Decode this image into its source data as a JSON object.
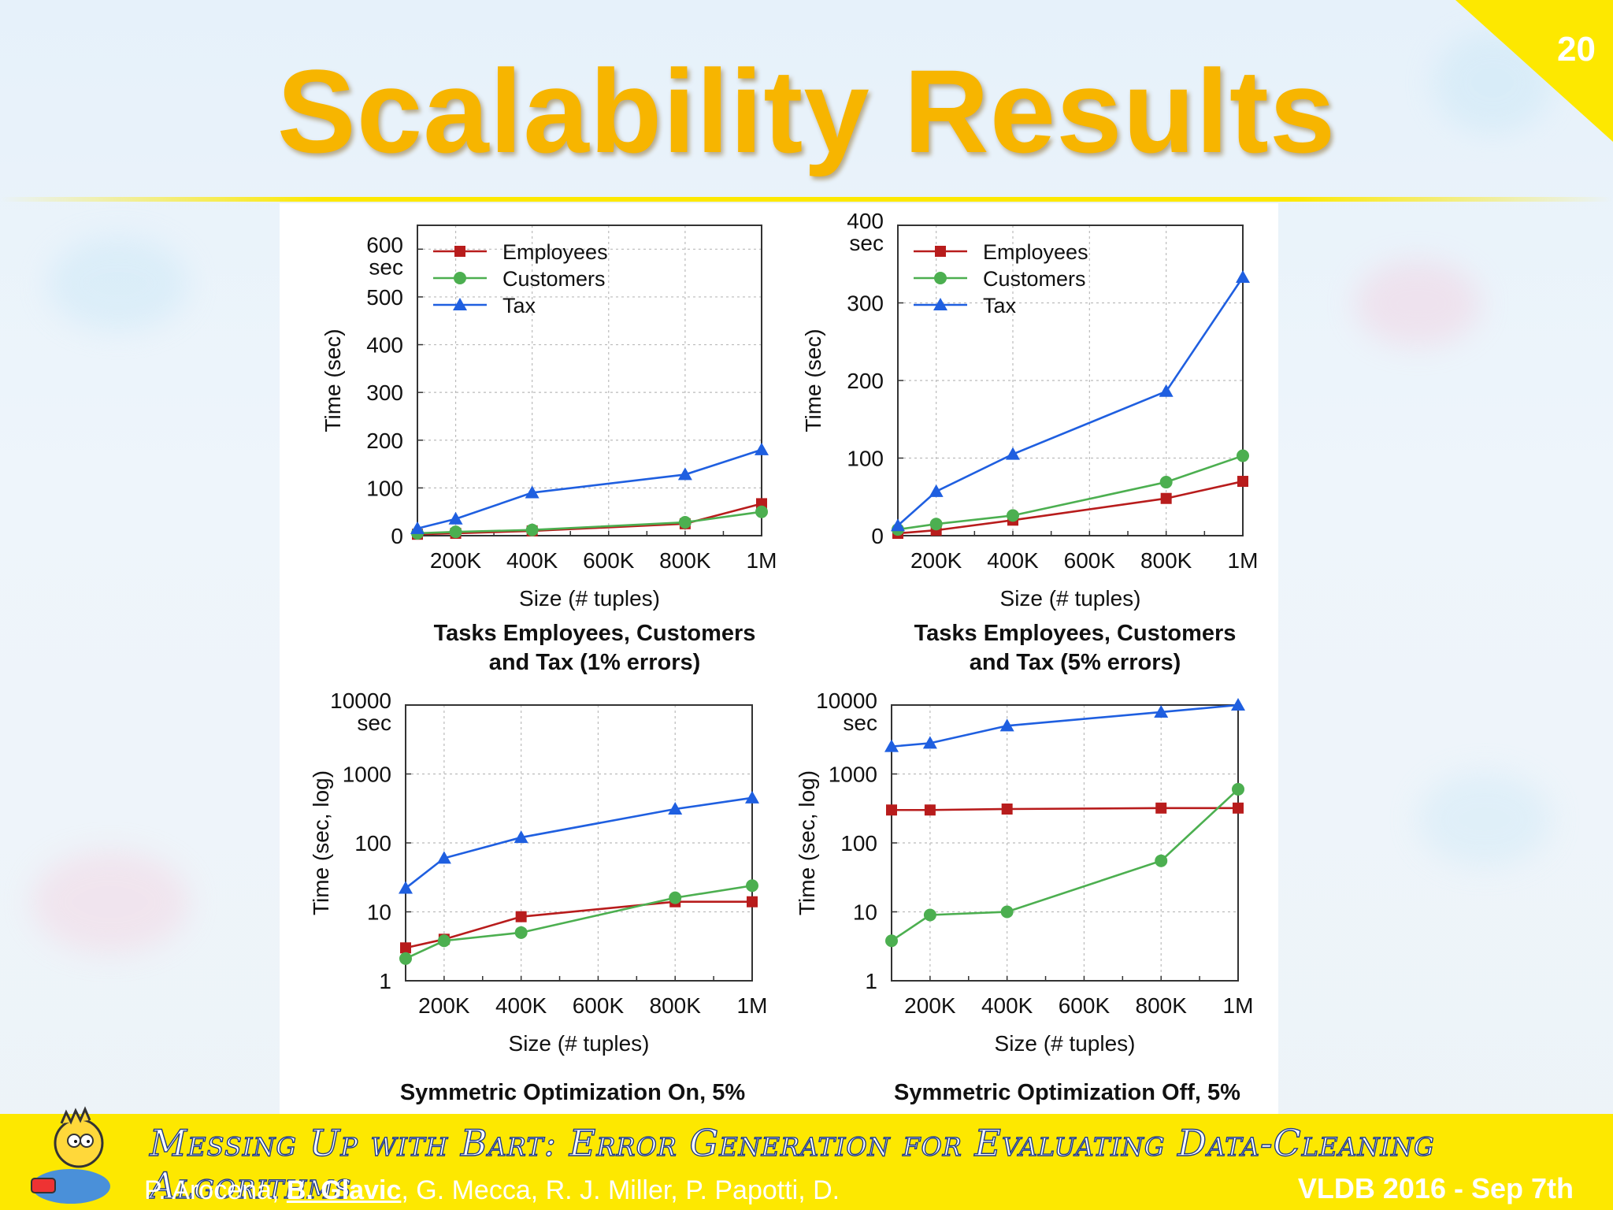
{
  "slide": {
    "title": "Scalability Results",
    "number": "20",
    "accent": "#f7b500",
    "banner_color": "#fde800"
  },
  "footer": {
    "title": "Messing Up with Bart: Error Generation for Evaluating Data-Cleaning Algorithms",
    "authors_pre": "P. Arocena, ",
    "authors_highlight": "B. Glavic",
    "authors_post": ", G. Mecca, R. J. Miller, P. Papotti, D.",
    "venue": "VLDB 2016 - Sep 7th"
  },
  "mascot": {
    "icon": "cartoon-mascot-icon"
  },
  "chart_data": [
    {
      "type": "line",
      "x_tick_labels": [
        "200K",
        "400K",
        "600K",
        "800K",
        "1M"
      ],
      "x_ticks": [
        200,
        400,
        600,
        800,
        1000
      ],
      "xlim": [
        100,
        1000
      ],
      "xlabel": "Size (# tuples)",
      "ylabel": "Time (sec)",
      "y_unit_label": "sec",
      "ylim": [
        0,
        650
      ],
      "y_ticks": [
        0,
        100,
        200,
        300,
        400,
        500,
        600
      ],
      "y_tick_labels": [
        "0",
        "100",
        "200",
        "300",
        "400",
        "500",
        "600"
      ],
      "yscale": "linear",
      "grid": true,
      "legend": "top-left",
      "caption_lines": [
        "Tasks Employees, Customers",
        "and Tax (1% errors)"
      ],
      "series": [
        {
          "name": "Employees",
          "color": "#b81c1c",
          "marker": "square",
          "x": [
            100,
            200,
            400,
            800,
            1000
          ],
          "values": [
            3,
            5,
            10,
            25,
            67
          ]
        },
        {
          "name": "Customers",
          "color": "#4caf50",
          "marker": "circle",
          "x": [
            100,
            200,
            400,
            800,
            1000
          ],
          "values": [
            5,
            8,
            12,
            28,
            50
          ]
        },
        {
          "name": "Tax",
          "color": "#1f5fe0",
          "marker": "triangle",
          "x": [
            100,
            200,
            400,
            800,
            1000
          ],
          "values": [
            15,
            35,
            90,
            128,
            180
          ]
        }
      ]
    },
    {
      "type": "line",
      "x_tick_labels": [
        "200K",
        "400K",
        "600K",
        "800K",
        "1M"
      ],
      "x_ticks": [
        200,
        400,
        600,
        800,
        1000
      ],
      "xlim": [
        100,
        1000
      ],
      "xlabel": "Size (# tuples)",
      "ylabel": "Time (sec)",
      "y_unit_label": "sec",
      "ylim": [
        0,
        400
      ],
      "y_ticks": [
        0,
        100,
        200,
        300,
        400
      ],
      "y_tick_labels": [
        "0",
        "100",
        "200",
        "300",
        "400"
      ],
      "yscale": "linear",
      "grid": true,
      "legend": "top-left",
      "caption_lines": [
        "Tasks Employees, Customers",
        "and Tax (5% errors)"
      ],
      "series": [
        {
          "name": "Employees",
          "color": "#b81c1c",
          "marker": "square",
          "x": [
            100,
            200,
            400,
            800,
            1000
          ],
          "values": [
            3,
            7,
            20,
            48,
            70
          ]
        },
        {
          "name": "Customers",
          "color": "#4caf50",
          "marker": "circle",
          "x": [
            100,
            200,
            400,
            800,
            1000
          ],
          "values": [
            8,
            15,
            26,
            69,
            103
          ]
        },
        {
          "name": "Tax",
          "color": "#1f5fe0",
          "marker": "triangle",
          "x": [
            100,
            200,
            400,
            800,
            1000
          ],
          "values": [
            13,
            57,
            105,
            186,
            333
          ]
        }
      ]
    },
    {
      "type": "line",
      "x_tick_labels": [
        "200K",
        "400K",
        "600K",
        "800K",
        "1M"
      ],
      "x_ticks": [
        200,
        400,
        600,
        800,
        1000
      ],
      "xlim": [
        100,
        1000
      ],
      "xlabel": "Size (# tuples)",
      "ylabel": "Time (sec, log)",
      "y_unit_label": "sec",
      "ylim": [
        1,
        10000
      ],
      "y_ticks": [
        1,
        10,
        100,
        1000,
        10000
      ],
      "y_tick_labels": [
        "1",
        "10",
        "100",
        "1000",
        "10000"
      ],
      "yscale": "log",
      "grid": true,
      "legend": "none",
      "caption_lines": [
        "Symmetric Optimization On, 5%"
      ],
      "series": [
        {
          "name": "Employees",
          "color": "#b81c1c",
          "marker": "square",
          "x": [
            100,
            200,
            400,
            800,
            1000
          ],
          "values": [
            3,
            4,
            8.5,
            14,
            14
          ]
        },
        {
          "name": "Customers",
          "color": "#4caf50",
          "marker": "circle",
          "x": [
            100,
            200,
            400,
            800,
            1000
          ],
          "values": [
            2.1,
            3.8,
            5,
            16,
            24
          ]
        },
        {
          "name": "Tax",
          "color": "#1f5fe0",
          "marker": "triangle",
          "x": [
            100,
            200,
            400,
            800,
            1000
          ],
          "values": [
            22,
            60,
            120,
            310,
            450
          ]
        }
      ]
    },
    {
      "type": "line",
      "x_tick_labels": [
        "200K",
        "400K",
        "600K",
        "800K",
        "1M"
      ],
      "x_ticks": [
        200,
        400,
        600,
        800,
        1000
      ],
      "xlim": [
        100,
        1000
      ],
      "xlabel": "Size (# tuples)",
      "ylabel": "Time (sec, log)",
      "y_unit_label": "sec",
      "ylim": [
        1,
        10000
      ],
      "y_ticks": [
        1,
        10,
        100,
        1000,
        10000
      ],
      "y_tick_labels": [
        "1",
        "10",
        "100",
        "1000",
        "10000"
      ],
      "yscale": "log",
      "grid": true,
      "legend": "none",
      "caption_lines": [
        "Symmetric Optimization Off, 5%"
      ],
      "series": [
        {
          "name": "Employees",
          "color": "#b81c1c",
          "marker": "square",
          "x": [
            100,
            200,
            400,
            800,
            1000
          ],
          "values": [
            300,
            300,
            310,
            320,
            320
          ]
        },
        {
          "name": "Customers",
          "color": "#4caf50",
          "marker": "circle",
          "x": [
            100,
            200,
            400,
            800,
            1000
          ],
          "values": [
            3.8,
            9,
            10,
            55,
            600
          ]
        },
        {
          "name": "Tax",
          "color": "#1f5fe0",
          "marker": "triangle",
          "x": [
            100,
            200,
            400,
            800,
            1000
          ],
          "values": [
            2500,
            2800,
            5000,
            7900,
            10000
          ]
        }
      ]
    }
  ]
}
